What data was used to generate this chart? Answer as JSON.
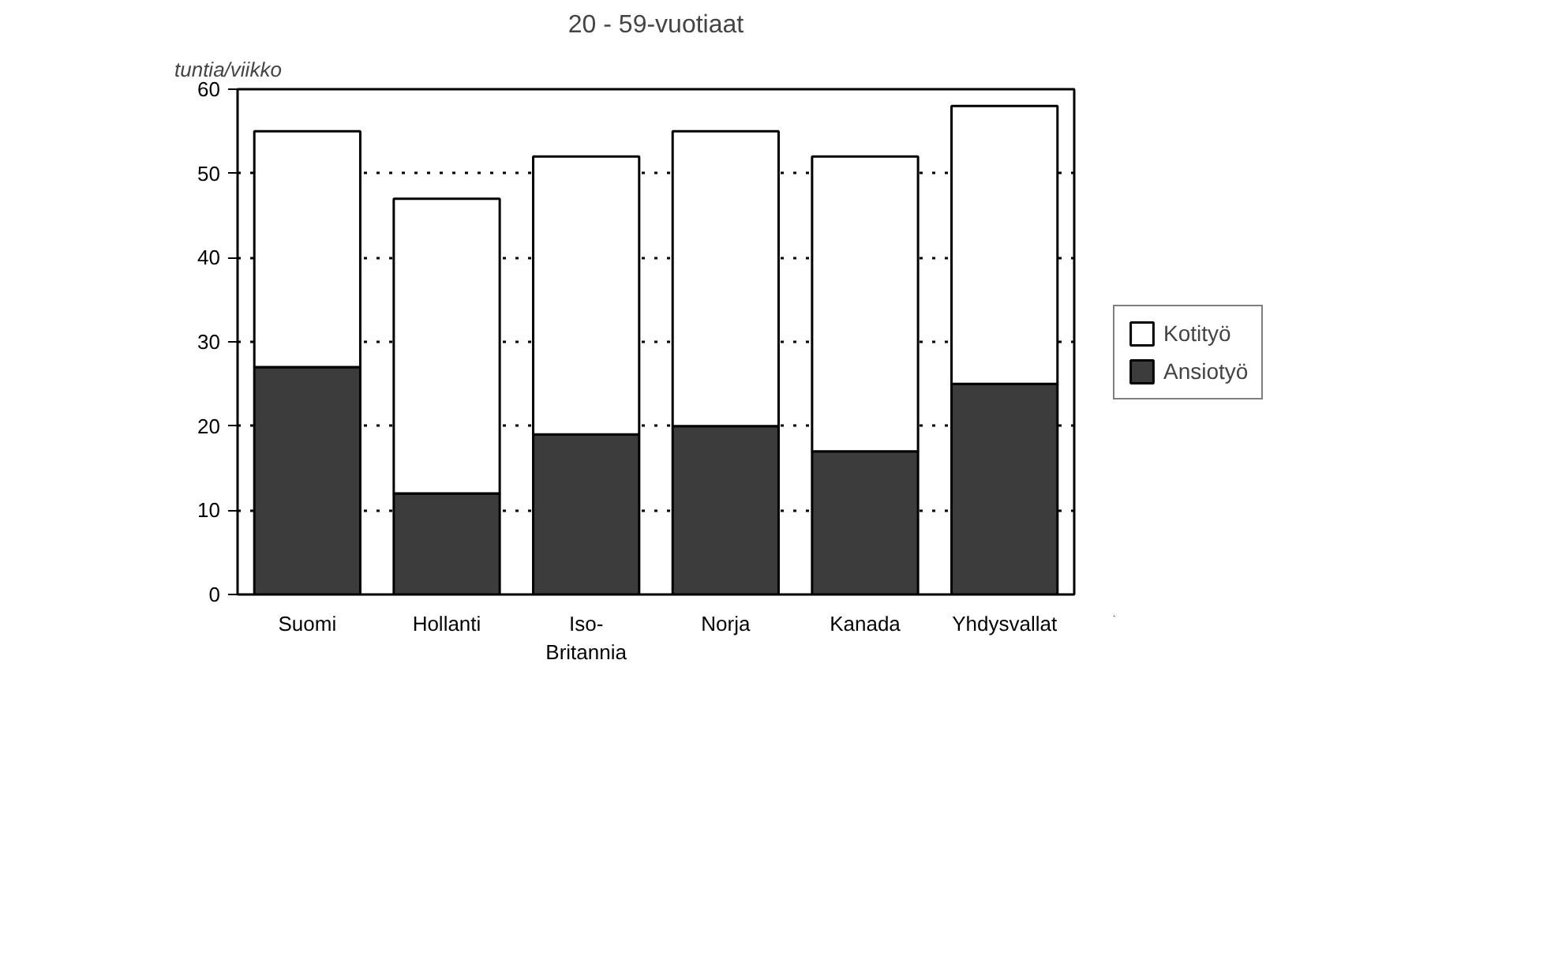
{
  "chart_data": {
    "type": "bar",
    "title": "20 - 59-vuotiaat",
    "ylabel": "tuntia/viikko",
    "categories": [
      "Suomi",
      "Hollanti",
      "Iso-\nBritannia",
      "Norja",
      "Kanada",
      "Yhdysvallat"
    ],
    "stacked": true,
    "series": [
      {
        "name": "Ansiotyö",
        "color": "#3c3c3c",
        "values": [
          27,
          12,
          19,
          20,
          17,
          25
        ]
      },
      {
        "name": "Kotityö",
        "color": "#ffffff",
        "values": [
          28,
          35,
          33,
          35,
          35,
          33
        ]
      }
    ],
    "ylim": [
      0,
      60
    ],
    "yticks": [
      0,
      10,
      20,
      30,
      40,
      50,
      60
    ],
    "grid": "y",
    "legend": "right"
  }
}
